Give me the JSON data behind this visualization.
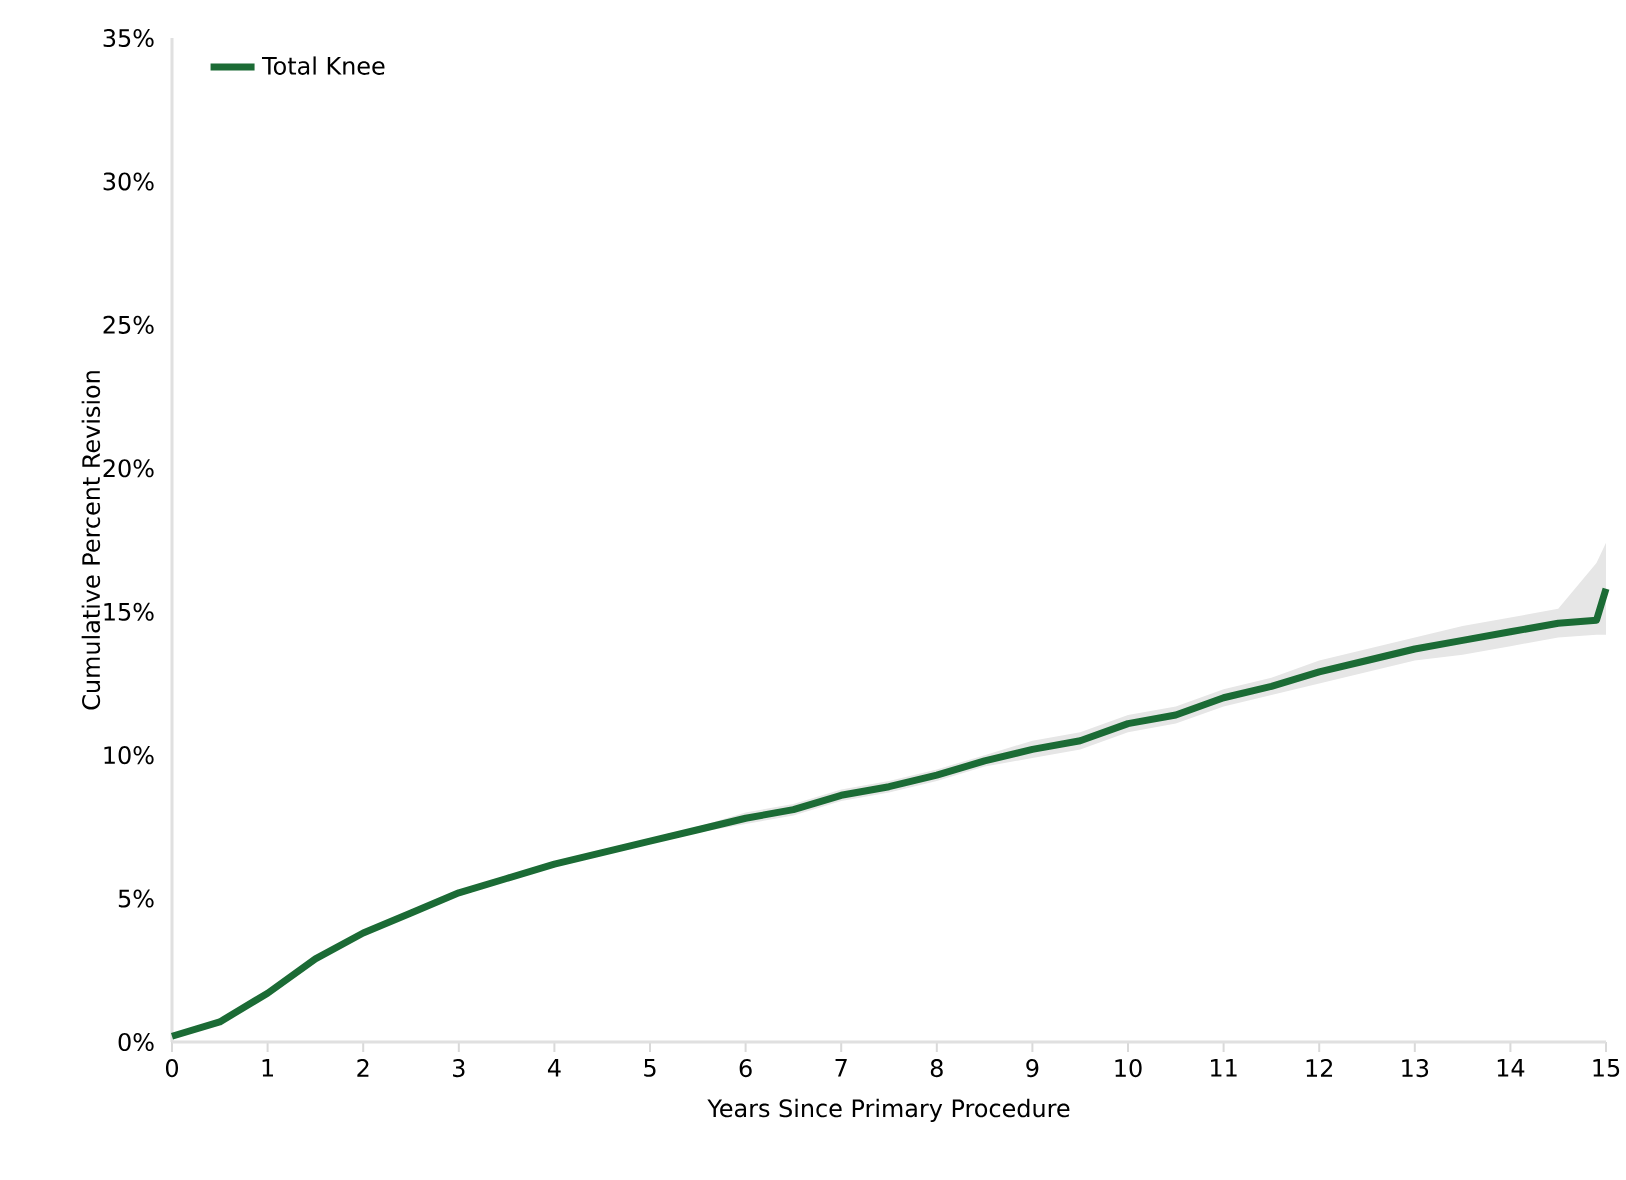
{
  "chart_data": {
    "type": "line",
    "xlabel": "Years Since Primary Procedure",
    "ylabel": "Cumulative Percent Revision",
    "x": [
      0,
      0.5,
      1,
      1.5,
      2,
      2.5,
      3,
      3.5,
      4,
      4.5,
      5,
      5.5,
      6,
      6.5,
      7,
      7.5,
      8,
      8.5,
      9,
      9.5,
      10,
      10.5,
      11,
      11.5,
      12,
      12.5,
      13,
      13.5,
      14,
      14.5,
      14.9,
      15
    ],
    "series": [
      {
        "name": "Total Knee",
        "color": "#1b6b35",
        "values": [
          0.2,
          0.7,
          1.7,
          2.9,
          3.8,
          4.5,
          5.2,
          5.7,
          6.2,
          6.6,
          7.0,
          7.4,
          7.8,
          8.1,
          8.6,
          8.9,
          9.3,
          9.8,
          10.2,
          10.5,
          11.1,
          11.4,
          12.0,
          12.4,
          12.9,
          13.3,
          13.7,
          14.0,
          14.3,
          14.6,
          14.7,
          15.8
        ],
        "lower": [
          0.1,
          0.6,
          1.6,
          2.8,
          3.7,
          4.4,
          5.1,
          5.6,
          6.1,
          6.5,
          6.9,
          7.3,
          7.6,
          7.9,
          8.4,
          8.7,
          9.1,
          9.6,
          9.9,
          10.2,
          10.8,
          11.1,
          11.7,
          12.1,
          12.5,
          12.9,
          13.3,
          13.5,
          13.8,
          14.1,
          14.2,
          14.2
        ],
        "upper": [
          0.3,
          0.8,
          1.8,
          3.0,
          3.9,
          4.6,
          5.3,
          5.8,
          6.3,
          6.7,
          7.1,
          7.5,
          8.0,
          8.3,
          8.8,
          9.1,
          9.5,
          10.0,
          10.5,
          10.8,
          11.4,
          11.7,
          12.3,
          12.7,
          13.3,
          13.7,
          14.1,
          14.5,
          14.8,
          15.1,
          16.7,
          17.4
        ]
      }
    ],
    "xlim": [
      0,
      15
    ],
    "xticks": [
      0,
      1,
      2,
      3,
      4,
      5,
      6,
      7,
      8,
      9,
      10,
      11,
      12,
      13,
      14,
      15
    ],
    "ylim": [
      0,
      35
    ],
    "yticks": [
      {
        "value": 0,
        "label": "0%"
      },
      {
        "value": 5,
        "label": "5%"
      },
      {
        "value": 10,
        "label": "10%"
      },
      {
        "value": 15,
        "label": "15%"
      },
      {
        "value": 20,
        "label": "20%"
      },
      {
        "value": 25,
        "label": "25%"
      },
      {
        "value": 30,
        "label": "30%"
      },
      {
        "value": 35,
        "label": "35%"
      }
    ],
    "legend": "top left",
    "grid": false,
    "marker": "none",
    "line_style": "solid"
  }
}
